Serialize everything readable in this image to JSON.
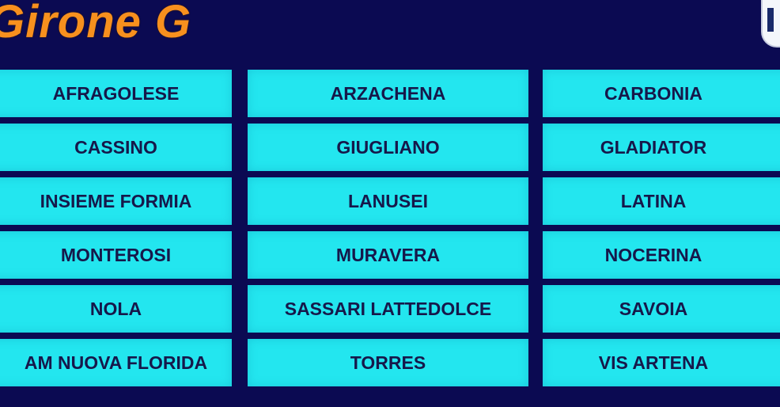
{
  "title": "Girone G",
  "colors": {
    "background": "#0b0a52",
    "title": "#f7901e",
    "cell": "#23e6ef",
    "cell_text": "#16184a"
  },
  "teams": [
    [
      "AFRAGOLESE",
      "ARZACHENA",
      "CARBONIA"
    ],
    [
      "CASSINO",
      "GIUGLIANO",
      "GLADIATOR"
    ],
    [
      "INSIEME FORMIA",
      "LANUSEI",
      "LATINA"
    ],
    [
      "MONTEROSI",
      "MURAVERA",
      "NOCERINA"
    ],
    [
      "NOLA",
      "SASSARI LATTEDOLCE",
      "SAVOIA"
    ],
    [
      "AM NUOVA FLORIDA",
      "TORRES",
      "VIS ARTENA"
    ]
  ]
}
